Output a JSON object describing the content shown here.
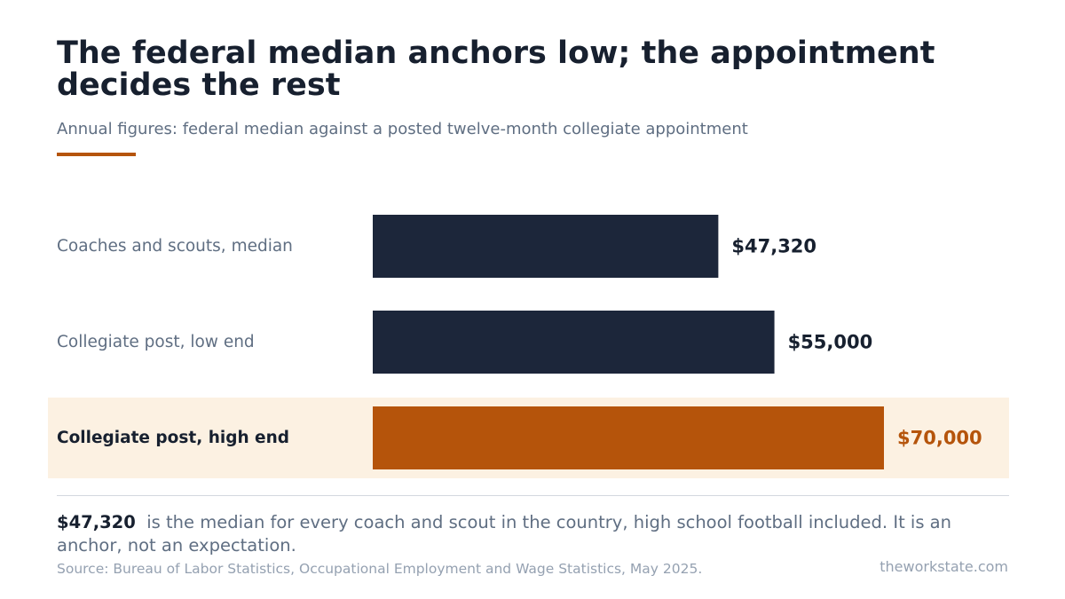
{
  "title": "The federal median anchors low; the appointment decides the rest",
  "subtitle": "Annual figures: federal median against a posted twelve-month collegiate appointment",
  "colors": {
    "bar": "#1c263a",
    "highlight": "#b5540b",
    "highlight_band": "#fcf1e2",
    "label": "#5f6e82",
    "value": "#17202f"
  },
  "chart_data": {
    "type": "bar",
    "orientation": "horizontal",
    "categories": [
      "Coaches and scouts, median",
      "Collegiate post, low end",
      "Collegiate post, high end"
    ],
    "values": [
      47320,
      55000,
      70000
    ],
    "value_labels": [
      "$47,320",
      "$55,000",
      "$70,000"
    ],
    "highlighted_index": 2,
    "xlim": [
      0,
      70000
    ],
    "grid": false,
    "legend": "none"
  },
  "note": {
    "value": "$47,320",
    "text": "is the median for every coach and scout in the country, high school football included. It is an anchor, not an expectation."
  },
  "source": "Source: Bureau of Labor Statistics, Occupational Employment and Wage Statistics, May 2025.",
  "brand": "theworkstate.com"
}
